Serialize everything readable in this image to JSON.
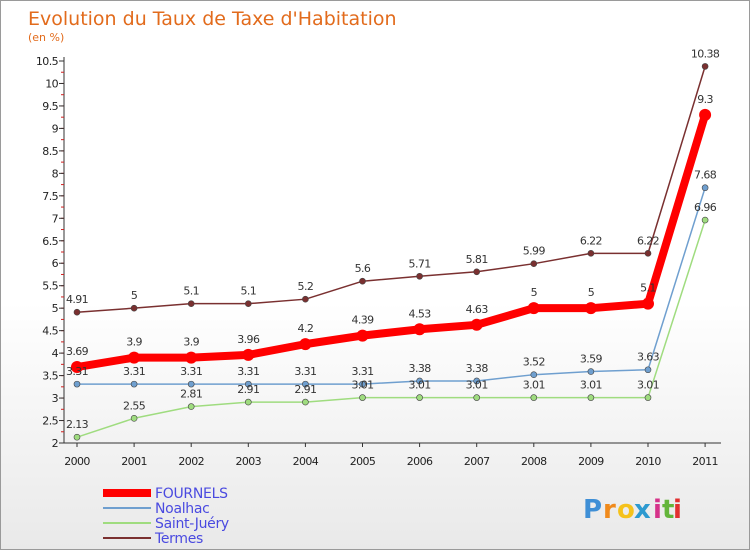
{
  "chart_data": {
    "type": "line",
    "title": "Evolution du Taux de Taxe d'Habitation",
    "subtitle": "(en %)",
    "x": [
      "2000",
      "2001",
      "2002",
      "2003",
      "2004",
      "2005",
      "2006",
      "2007",
      "2008",
      "2009",
      "2010",
      "2011"
    ],
    "y_ticks": [
      "2",
      "2.5",
      "3",
      "3.5",
      "4",
      "4.5",
      "5",
      "5.5",
      "6",
      "6.5",
      "7",
      "7.5",
      "8",
      "8.5",
      "9",
      "9.5",
      "10",
      "10.5"
    ],
    "ylim": [
      2,
      10.5
    ],
    "grid": false,
    "legend_position": "bottom-left",
    "series": [
      {
        "name": "FOURNELS",
        "color": "#ff0000",
        "values": [
          3.69,
          3.9,
          3.9,
          3.96,
          4.2,
          4.39,
          4.53,
          4.63,
          5,
          5,
          5.1,
          9.3
        ],
        "labels": [
          "3.69",
          "3.9",
          "3.9",
          "3.96",
          "4.2",
          "4.39",
          "4.53",
          "4.63",
          "5",
          "5",
          "5.1",
          "9.3"
        ]
      },
      {
        "name": "Noalhac",
        "color": "#6f9fcf",
        "values": [
          3.31,
          3.31,
          3.31,
          3.31,
          3.31,
          3.31,
          3.38,
          3.38,
          3.52,
          3.59,
          3.63,
          7.68
        ],
        "labels": [
          "3.31",
          "3.31",
          "3.31",
          "3.31",
          "3.31",
          "3.31",
          "3.38",
          "3.38",
          "3.52",
          "3.59",
          "3.63",
          "7.68"
        ]
      },
      {
        "name": "Saint-Juéry",
        "color": "#9fdc7f",
        "values": [
          2.13,
          2.55,
          2.81,
          2.91,
          2.91,
          3.01,
          3.01,
          3.01,
          3.01,
          3.01,
          3.01,
          6.96
        ],
        "labels": [
          "2.13",
          "2.55",
          "2.81",
          "2.91",
          "2.91",
          "3.01",
          "3.01",
          "3.01",
          "3.01",
          "3.01",
          "3.01",
          "6.96"
        ]
      },
      {
        "name": "Termes",
        "color": "#7a3030",
        "values": [
          4.91,
          5,
          5.1,
          5.1,
          5.2,
          5.6,
          5.71,
          5.81,
          5.99,
          6.22,
          6.22,
          10.38
        ],
        "labels": [
          "4.91",
          "5",
          "5.1",
          "5.1",
          "5.2",
          "5.6",
          "5.71",
          "5.81",
          "5.99",
          "6.22",
          "6.22",
          "10.38"
        ]
      }
    ]
  },
  "logo": {
    "letters": [
      "P",
      "r",
      "o",
      "x",
      "i",
      "t",
      "i"
    ],
    "colors": [
      "#3f8fd6",
      "#f08a1c",
      "#f5c21b",
      "#2d9ad0",
      "#d6338a",
      "#63b53a",
      "#e23030"
    ]
  }
}
